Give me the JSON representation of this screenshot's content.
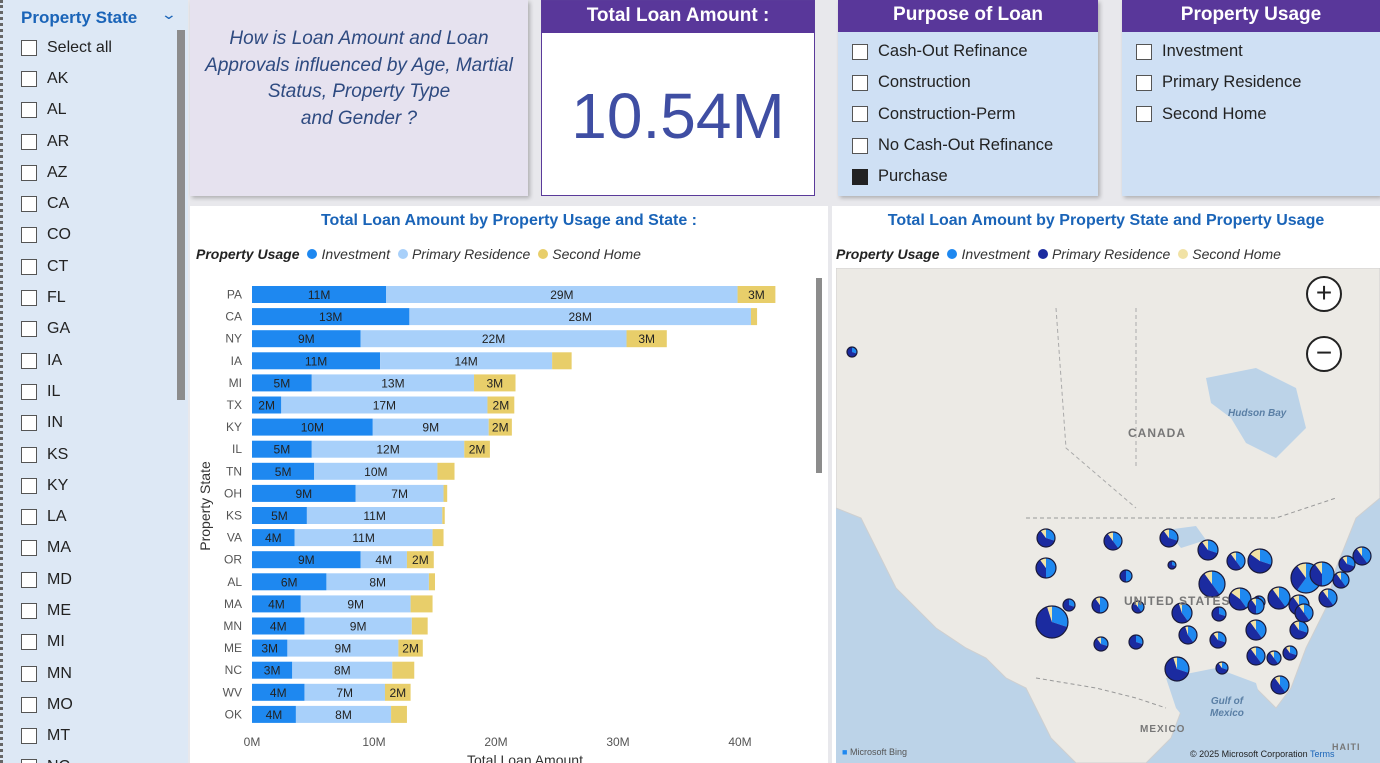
{
  "left_slicer": {
    "title": "Property State",
    "items": [
      "Select all",
      "AK",
      "AL",
      "AR",
      "AZ",
      "CA",
      "CO",
      "CT",
      "FL",
      "GA",
      "IA",
      "IL",
      "IN",
      "KS",
      "KY",
      "LA",
      "MA",
      "MD",
      "ME",
      "MI",
      "MN",
      "MO",
      "MT",
      "NC"
    ]
  },
  "question": {
    "text": "How is Loan Amount and Loan\nApprovals influenced by Age, Martial\nStatus, Property Type\nand Gender ?"
  },
  "kpi": {
    "title": "Total Loan Amount :",
    "value": "10.54M"
  },
  "purpose": {
    "title": "Purpose of Loan",
    "items": [
      {
        "label": "Cash-Out Refinance",
        "checked": false
      },
      {
        "label": "Construction",
        "checked": false
      },
      {
        "label": "Construction-Perm",
        "checked": false
      },
      {
        "label": "No Cash-Out Refinance",
        "checked": false
      },
      {
        "label": "Purchase",
        "checked": true
      }
    ]
  },
  "usage": {
    "title": "Property Usage",
    "items": [
      {
        "label": "Investment",
        "checked": false
      },
      {
        "label": "Primary Residence",
        "checked": false
      },
      {
        "label": "Second Home",
        "checked": false
      }
    ]
  },
  "bar_panel": {
    "title": "Total Loan Amount by Property Usage and State :",
    "legend_title": "Property Usage",
    "legend": [
      "Investment",
      "Primary Residence",
      "Second Home"
    ]
  },
  "map_panel": {
    "title": "Total Loan Amount by Property State and Property Usage",
    "legend_title": "Property Usage",
    "legend": [
      "Investment",
      "Primary Residence",
      "Second Home"
    ],
    "labels": {
      "canada": "CANADA",
      "united_states": "UNITED STATES",
      "mexico": "MEXICO",
      "haiti": "HAITI",
      "hudson": "Hudson Bay",
      "gulf": "Gulf of\nMexico"
    },
    "attribution": "Microsoft Bing",
    "copyright": "© 2025 Microsoft Corporation",
    "terms": "Terms"
  },
  "colors": {
    "investment": "#1e88f0",
    "primary_residence": "#a8d0fa",
    "second_home": "#e8ce6a",
    "map_primary": "#1b2ba0",
    "map_second": "#f1e2a5",
    "header": "#59379a"
  },
  "chart_data": {
    "type": "bar",
    "orientation": "horizontal",
    "stacked": true,
    "title": "Total Loan Amount by Property Usage and State :",
    "xlabel": "Total Loan Amount",
    "ylabel": "Property State",
    "xlim": [
      0,
      44000000
    ],
    "xticks": [
      "0M",
      "10M",
      "20M",
      "30M",
      "40M"
    ],
    "xtick_values": [
      0,
      10000000,
      20000000,
      30000000,
      40000000
    ],
    "categories": [
      "PA",
      "CA",
      "NY",
      "IA",
      "MI",
      "TX",
      "KY",
      "IL",
      "TN",
      "OH",
      "KS",
      "VA",
      "OR",
      "AL",
      "MA",
      "MN",
      "ME",
      "NC",
      "WV",
      "OK"
    ],
    "series": [
      {
        "name": "Investment",
        "values": [
          11000000,
          12900000,
          8900000,
          10500000,
          4900000,
          2400000,
          9900000,
          4900000,
          5100000,
          8500000,
          4500000,
          3500000,
          8900000,
          6100000,
          4000000,
          4300000,
          2900000,
          3300000,
          4300000,
          3600000
        ],
        "labels": [
          "11M",
          "13M",
          "9M",
          "11M",
          "5M",
          "2M",
          "10M",
          "5M",
          "5M",
          "9M",
          "5M",
          "4M",
          "9M",
          "6M",
          "4M",
          "4M",
          "3M",
          "3M",
          "4M",
          "4M"
        ]
      },
      {
        "name": "Primary Residence",
        "values": [
          28800000,
          28000000,
          21800000,
          14100000,
          13300000,
          16900000,
          9500000,
          12500000,
          10100000,
          7200000,
          11100000,
          11300000,
          3800000,
          8400000,
          9000000,
          8800000,
          9100000,
          8200000,
          6600000,
          7800000
        ],
        "labels": [
          "29M",
          "28M",
          "22M",
          "14M",
          "13M",
          "17M",
          "9M",
          "12M",
          "10M",
          "7M",
          "11M",
          "11M",
          "4M",
          "8M",
          "9M",
          "9M",
          "9M",
          "8M",
          "7M",
          "8M"
        ]
      },
      {
        "name": "Second Home",
        "values": [
          3100000,
          500000,
          3300000,
          1600000,
          3400000,
          2200000,
          1900000,
          2100000,
          1400000,
          300000,
          200000,
          900000,
          2200000,
          500000,
          1800000,
          1300000,
          2000000,
          1800000,
          2100000,
          1300000
        ],
        "labels": [
          "3M",
          "",
          "3M",
          "",
          "3M",
          "2M",
          "2M",
          "2M",
          "",
          "",
          "",
          "",
          "2M",
          "",
          "",
          "",
          "2M",
          "",
          "2M",
          ""
        ]
      }
    ]
  }
}
